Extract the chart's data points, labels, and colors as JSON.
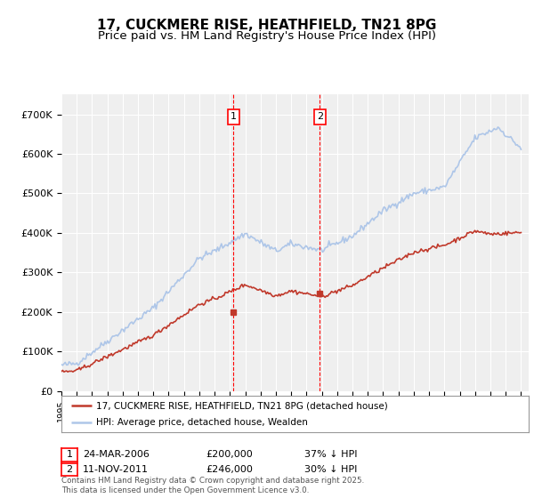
{
  "title": "17, CUCKMERE RISE, HEATHFIELD, TN21 8PG",
  "subtitle": "Price paid vs. HM Land Registry's House Price Index (HPI)",
  "ylim": [
    0,
    750000
  ],
  "yticks": [
    0,
    100000,
    200000,
    300000,
    400000,
    500000,
    600000,
    700000
  ],
  "ytick_labels": [
    "£0",
    "£100K",
    "£200K",
    "£300K",
    "£400K",
    "£500K",
    "£600K",
    "£700K"
  ],
  "hpi_color": "#aec6e8",
  "price_color": "#c0392b",
  "marker1_date": 2006.23,
  "marker1_price": 200000,
  "marker2_date": 2011.86,
  "marker2_price": 246000,
  "background_color": "#ffffff",
  "plot_bg_color": "#efefef",
  "legend_label_price": "17, CUCKMERE RISE, HEATHFIELD, TN21 8PG (detached house)",
  "legend_label_hpi": "HPI: Average price, detached house, Wealden",
  "ann1_date": "24-MAR-2006",
  "ann1_price": "£200,000",
  "ann1_pct": "37% ↓ HPI",
  "ann2_date": "11-NOV-2011",
  "ann2_price": "£246,000",
  "ann2_pct": "30% ↓ HPI",
  "footnote": "Contains HM Land Registry data © Crown copyright and database right 2025.\nThis data is licensed under the Open Government Licence v3.0.",
  "title_fontsize": 11,
  "subtitle_fontsize": 9.5,
  "grid_color": "#ffffff"
}
